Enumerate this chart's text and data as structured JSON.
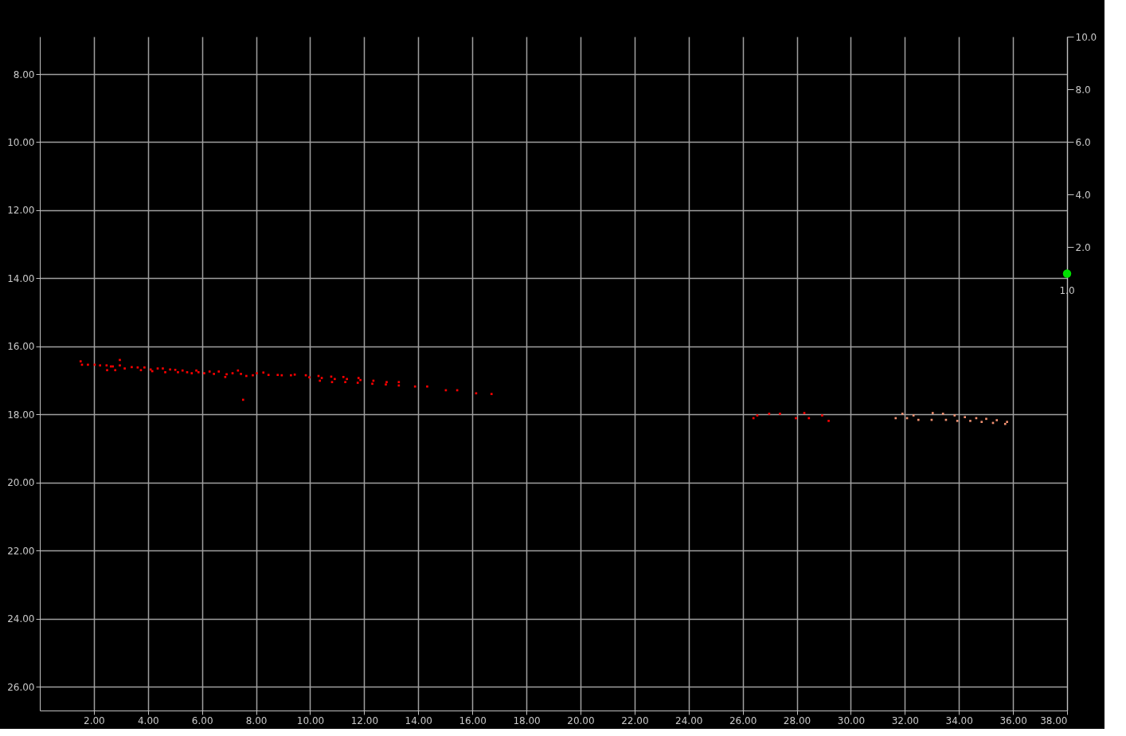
{
  "chart_data": {
    "type": "scatter",
    "marker": "square",
    "grid": true,
    "xlim": [
      0,
      38
    ],
    "ylim": [
      26.7,
      6.9
    ],
    "y2lim": [
      -15.6,
      10
    ],
    "xticks": [
      {
        "value": 2,
        "label": "2.00"
      },
      {
        "value": 4,
        "label": "4.00"
      },
      {
        "value": 6,
        "label": "6.00"
      },
      {
        "value": 8,
        "label": "8.00"
      },
      {
        "value": 10,
        "label": "10.00"
      },
      {
        "value": 12,
        "label": "12.00"
      },
      {
        "value": 14,
        "label": "14.00"
      },
      {
        "value": 16,
        "label": "16.00"
      },
      {
        "value": 18,
        "label": "18.00"
      },
      {
        "value": 20,
        "label": "20.00"
      },
      {
        "value": 22,
        "label": "22.00"
      },
      {
        "value": 24,
        "label": "24.00"
      },
      {
        "value": 26,
        "label": "26.00"
      },
      {
        "value": 28,
        "label": "28.00"
      },
      {
        "value": 30,
        "label": "30.00"
      },
      {
        "value": 32,
        "label": "32.00"
      },
      {
        "value": 34,
        "label": "34.00"
      },
      {
        "value": 36,
        "label": "36.00"
      },
      {
        "value": 38,
        "label": "38.00"
      }
    ],
    "yticks": [
      {
        "value": 8,
        "label": "8.00"
      },
      {
        "value": 10,
        "label": "10.00"
      },
      {
        "value": 12,
        "label": "12.00"
      },
      {
        "value": 14,
        "label": "14.00"
      },
      {
        "value": 16,
        "label": "16.00"
      },
      {
        "value": 18,
        "label": "18.00"
      },
      {
        "value": 20,
        "label": "20.00"
      },
      {
        "value": 22,
        "label": "22.00"
      },
      {
        "value": 24,
        "label": "24.00"
      },
      {
        "value": 26,
        "label": "26.00"
      }
    ],
    "y2ticks": [
      {
        "value": 10,
        "label": "10.0"
      },
      {
        "value": 8,
        "label": "8.0"
      },
      {
        "value": 6,
        "label": "6.0"
      },
      {
        "value": 4,
        "label": "4.0"
      },
      {
        "value": 2,
        "label": "2.0"
      }
    ],
    "series": [
      {
        "color": "#ff0000",
        "x": [
          1.51,
          1.56,
          1.78,
          2.03,
          2.23,
          2.47,
          2.49,
          2.63,
          2.7,
          2.79,
          2.96,
          2.96,
          3.14,
          3.4,
          3.62,
          3.74,
          3.87,
          4.1,
          4.16,
          4.36,
          4.55,
          4.64,
          4.82,
          5.01,
          5.11,
          5.28,
          5.45,
          5.62,
          5.79,
          5.87,
          6.08,
          6.28,
          6.44,
          6.62,
          6.86,
          6.91,
          7.13,
          7.33,
          7.44,
          7.52,
          7.64,
          7.88,
          8.03,
          8.27,
          8.46,
          8.8,
          8.95,
          9.29,
          9.43,
          9.84,
          9.97,
          10.31,
          10.36,
          10.43,
          10.78,
          10.81,
          10.91,
          11.23,
          11.3,
          11.36,
          11.76,
          11.79,
          11.86,
          12.3,
          12.34,
          12.8,
          12.83,
          13.28,
          13.28,
          13.88,
          14.33,
          15.02,
          15.44,
          16.14,
          16.71,
          26.4,
          26.54,
          26.98,
          27.38,
          27.97,
          28.28,
          28.45,
          28.94,
          29.18
        ],
        "values": [
          16.44,
          16.54,
          16.54,
          16.54,
          16.56,
          16.56,
          16.7,
          16.59,
          16.59,
          16.7,
          16.4,
          16.56,
          16.65,
          16.61,
          16.62,
          16.7,
          16.62,
          16.68,
          16.73,
          16.65,
          16.65,
          16.76,
          16.68,
          16.69,
          16.76,
          16.71,
          16.76,
          16.79,
          16.71,
          16.76,
          16.79,
          16.74,
          16.81,
          16.74,
          16.9,
          16.82,
          16.79,
          16.71,
          16.81,
          17.57,
          16.87,
          16.85,
          16.79,
          16.77,
          16.84,
          16.84,
          16.85,
          16.85,
          16.83,
          16.85,
          16.91,
          16.87,
          17.01,
          16.93,
          16.89,
          17.05,
          16.96,
          16.9,
          17.05,
          16.96,
          17.07,
          16.93,
          16.99,
          17.1,
          17.01,
          17.12,
          17.05,
          17.05,
          17.15,
          17.18,
          17.18,
          17.29,
          17.29,
          17.38,
          17.4,
          18.11,
          18.03,
          17.98,
          17.98,
          18.11,
          17.96,
          18.11,
          18.03,
          18.19
        ]
      },
      {
        "color": "#f09070",
        "x": [
          31.66,
          31.91,
          32.08,
          32.32,
          32.5,
          32.99,
          33.03,
          33.41,
          33.52,
          33.84,
          33.94,
          34.22,
          34.42,
          34.64,
          34.84,
          35.01,
          35.26,
          35.4,
          35.71,
          35.78
        ],
        "values": [
          18.11,
          17.98,
          18.11,
          18.03,
          18.16,
          18.16,
          17.96,
          17.98,
          18.16,
          18.03,
          18.19,
          18.08,
          18.19,
          18.11,
          18.22,
          18.13,
          18.25,
          18.17,
          18.28,
          18.22
        ]
      },
      {
        "axis": "y2",
        "marker": "circle",
        "color": "#00e000",
        "x": [
          38
        ],
        "values": [
          1.0
        ],
        "value_labels": [
          "1.0"
        ]
      }
    ]
  }
}
